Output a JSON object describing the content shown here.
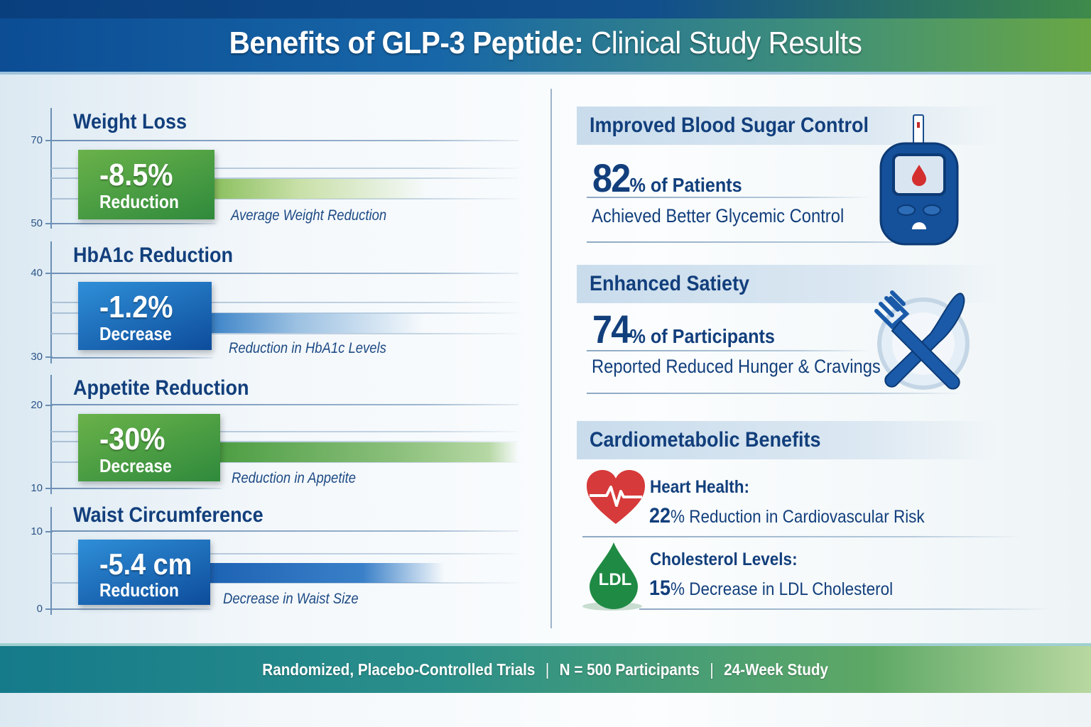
{
  "header": {
    "title_bold": "Benefits of GLP-3 Peptide:",
    "title_rest": " Clinical Study Results"
  },
  "left": {
    "sections": [
      {
        "title": "Weight Loss",
        "value": "-8.5%",
        "label": "Reduction",
        "caption": "Average Weight Reduction",
        "ticks": [
          "70",
          "50"
        ],
        "color": "green"
      },
      {
        "title": "HbA1c Reduction",
        "value": "-1.2%",
        "label": "Decrease",
        "caption": "Reduction in HbA1c Levels",
        "ticks": [
          "40",
          "30"
        ],
        "color": "blue"
      },
      {
        "title": "Appetite Reduction",
        "value": "-30%",
        "label": "Decrease",
        "caption": "Reduction in Appetite",
        "ticks": [
          "20",
          "10"
        ],
        "color": "green"
      },
      {
        "title": "Waist Circumference",
        "value": "-5.4 cm",
        "label": "Reduction",
        "caption": "Decrease in Waist Size",
        "ticks": [
          "10",
          "0"
        ],
        "color": "blue"
      }
    ]
  },
  "right": {
    "blood_sugar": {
      "title": "Improved Blood Sugar Control",
      "big": "82",
      "rest": "% of Patients",
      "sub": "Achieved Better Glycemic Control",
      "icon": "glucometer-icon"
    },
    "satiety": {
      "title": "Enhanced Satiety",
      "big": "74",
      "rest": "% of Participants",
      "sub": "Reported Reduced Hunger & Cravings",
      "icon": "fork-knife-icon"
    },
    "cardio": {
      "title": "Cardiometabolic Benefits",
      "heart": {
        "label": "Heart Health:",
        "big": "22",
        "rest": "% Reduction in Cardiovascular Risk",
        "icon": "heart-pulse-icon"
      },
      "cholesterol": {
        "label": "Cholesterol Levels:",
        "big": "15",
        "rest": "% Decrease in LDL Cholesterol",
        "icon": "ldl-drop-icon",
        "icon_text": "LDL"
      }
    }
  },
  "footer": {
    "items": [
      "Randomized, Placebo-Controlled Trials",
      "N = 500 Participants",
      "24-Week Study"
    ],
    "separator": "|"
  },
  "colors": {
    "green": "#4a9e42",
    "blue": "#1a62b0",
    "navy": "#123f7c",
    "red": "#d63a3a"
  }
}
